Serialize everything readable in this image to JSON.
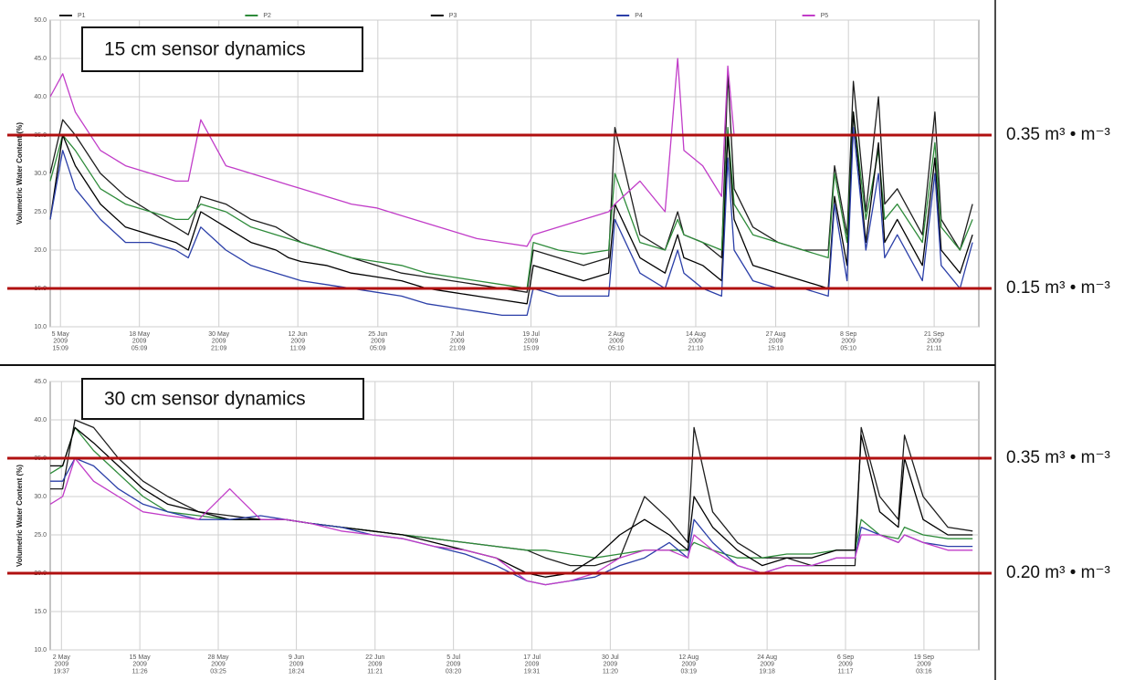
{
  "chart_data": [
    {
      "type": "line",
      "title": "15 cm sensor dynamics",
      "y_label": "Volumetric Water Content (%)",
      "legend": "top",
      "grid": true,
      "xlim": [
        "2009-05-04",
        "2009-09-29"
      ],
      "xticks": [
        {
          "value": "2009-05-05T15:09",
          "label": "5 May\n2009\n15:09"
        },
        {
          "value": "2009-05-18T05:09",
          "label": "18 May\n2009\n05:09"
        },
        {
          "value": "2009-05-30T21:09",
          "label": "30 May\n2009\n21:09"
        },
        {
          "value": "2009-06-12T11:09",
          "label": "12 Jun\n2009\n11:09"
        },
        {
          "value": "2009-06-25T05:09",
          "label": "25 Jun\n2009\n05:09"
        },
        {
          "value": "2009-07-07T21:09",
          "label": "7 Jul\n2009\n21:09"
        },
        {
          "value": "2009-07-19T15:09",
          "label": "19 Jul\n2009\n15:09"
        },
        {
          "value": "2009-08-02T05:10",
          "label": "2 Aug\n2009\n05:10"
        },
        {
          "value": "2009-08-14T21:10",
          "label": "14 Aug\n2009\n21:10"
        },
        {
          "value": "2009-08-27T15:10",
          "label": "27 Aug\n2009\n15:10"
        },
        {
          "value": "2009-09-08T05:10",
          "label": "8 Sep\n2009\n05:10"
        },
        {
          "value": "2009-09-21T21:11",
          "label": "21 Sep\n2009\n21:11"
        }
      ],
      "ylim": [
        10,
        50
      ],
      "yticks": [
        {
          "value": 10,
          "label": "10.0"
        },
        {
          "value": 15,
          "label": "15.0"
        },
        {
          "value": 20,
          "label": "20.0"
        },
        {
          "value": 25,
          "label": "25.0"
        },
        {
          "value": 30,
          "label": "30.0"
        },
        {
          "value": 35,
          "label": "35.0"
        },
        {
          "value": 40,
          "label": "40.0"
        },
        {
          "value": 45,
          "label": "45.0"
        },
        {
          "value": 50,
          "label": "50.0"
        }
      ],
      "thresholds": [
        {
          "value": 35,
          "label": "0.35 m³ • m⁻³"
        },
        {
          "value": 15,
          "label": "0.15 m³ • m⁻³"
        }
      ],
      "threshold_color": "#b01010",
      "x": [
        "2009-05-04",
        "2009-05-06",
        "2009-05-08",
        "2009-05-12",
        "2009-05-16",
        "2009-05-20",
        "2009-05-24",
        "2009-05-26",
        "2009-05-28",
        "2009-06-01",
        "2009-06-05",
        "2009-06-09",
        "2009-06-11",
        "2009-06-13",
        "2009-06-17",
        "2009-06-21",
        "2009-06-25",
        "2009-06-29",
        "2009-07-03",
        "2009-07-07",
        "2009-07-11",
        "2009-07-15",
        "2009-07-19",
        "2009-07-20",
        "2009-07-24",
        "2009-07-28",
        "2009-08-01",
        "2009-08-02",
        "2009-08-06",
        "2009-08-10",
        "2009-08-12",
        "2009-08-13",
        "2009-08-16",
        "2009-08-19",
        "2009-08-20",
        "2009-08-21",
        "2009-08-24",
        "2009-08-28",
        "2009-09-01",
        "2009-09-05",
        "2009-09-06",
        "2009-09-08",
        "2009-09-09",
        "2009-09-11",
        "2009-09-13",
        "2009-09-14",
        "2009-09-16",
        "2009-09-20",
        "2009-09-22",
        "2009-09-23",
        "2009-09-26",
        "2009-09-28"
      ],
      "series": [
        {
          "name": "P1",
          "color": "#1e1e1e",
          "values": [
            30,
            37,
            35,
            30,
            27,
            25,
            23,
            22,
            27,
            26,
            24,
            23,
            22,
            21,
            20,
            19,
            18,
            17,
            16.5,
            16,
            15.5,
            15,
            14.5,
            20,
            19,
            18,
            19,
            36,
            22,
            20,
            25,
            22,
            21,
            19,
            43,
            28,
            23,
            21,
            20,
            20,
            31,
            22,
            42,
            25,
            40,
            26,
            28,
            22,
            38,
            24,
            20,
            26
          ]
        },
        {
          "name": "P2",
          "color": "#2e8b3a",
          "values": [
            29,
            35,
            33,
            28,
            26,
            25,
            24,
            24,
            26,
            25,
            23,
            22,
            21.5,
            21,
            20,
            19,
            18.5,
            18,
            17,
            16.5,
            16,
            15.5,
            15,
            21,
            20,
            19.5,
            20,
            30,
            21,
            20,
            24,
            22,
            21,
            20,
            36,
            26,
            22,
            21,
            20,
            19,
            30,
            21,
            38,
            24,
            33,
            24,
            26,
            21,
            34,
            23,
            20,
            24
          ]
        },
        {
          "name": "P3",
          "color": "#000000",
          "values": [
            24,
            35,
            31,
            26,
            23,
            22,
            21,
            20,
            25,
            23,
            21,
            20,
            19,
            18.5,
            18,
            17,
            16.5,
            16,
            15,
            14.5,
            14,
            13.5,
            13,
            18,
            17,
            16,
            17,
            26,
            19,
            17,
            22,
            19,
            18,
            16,
            35,
            24,
            18,
            17,
            16,
            15,
            27,
            18,
            38,
            21,
            34,
            21,
            24,
            18,
            32,
            20,
            17,
            22
          ]
        },
        {
          "name": "P4",
          "color": "#2b3fa8",
          "values": [
            24,
            33,
            28,
            24,
            21,
            21,
            20,
            19,
            23,
            20,
            18,
            17,
            16.5,
            16,
            15.5,
            15,
            14.5,
            14,
            13,
            12.5,
            12,
            11.5,
            11.5,
            15,
            14,
            14,
            14,
            24,
            17,
            15,
            20,
            17,
            15,
            14,
            32,
            20,
            16,
            15,
            15,
            14,
            26,
            16,
            36,
            20,
            30,
            19,
            22,
            16,
            30,
            18,
            15,
            21
          ]
        },
        {
          "name": "P5",
          "color": "#c13cc8",
          "values": [
            40,
            43,
            38,
            33,
            31,
            30,
            29,
            29,
            37,
            31,
            30,
            29,
            28.5,
            28,
            27,
            26,
            25.5,
            24.5,
            23.5,
            22.5,
            21.5,
            21,
            20.5,
            22,
            23,
            24,
            25,
            26,
            29,
            25,
            45,
            33,
            31,
            27,
            44,
            35,
            null,
            null,
            null,
            null,
            null,
            null,
            null,
            null,
            null,
            null,
            null,
            null,
            null,
            null,
            null,
            null
          ]
        }
      ]
    },
    {
      "type": "line",
      "title": "30 cm sensor dynamics",
      "y_label": "Volumetric Water Content (%)",
      "grid": true,
      "xlim": [
        "2009-05-01",
        "2009-09-28"
      ],
      "xticks": [
        {
          "value": "2009-05-02T19:37",
          "label": "2 May\n2009\n19:37"
        },
        {
          "value": "2009-05-15T11:26",
          "label": "15 May\n2009\n11:26"
        },
        {
          "value": "2009-05-28T03:25",
          "label": "28 May\n2009\n03:25"
        },
        {
          "value": "2009-06-09T18:24",
          "label": "9 Jun\n2009\n18:24"
        },
        {
          "value": "2009-06-22T11:21",
          "label": "22 Jun\n2009\n11:21"
        },
        {
          "value": "2009-07-05T03:20",
          "label": "5 Jul\n2009\n03:20"
        },
        {
          "value": "2009-07-17T19:31",
          "label": "17 Jul\n2009\n19:31"
        },
        {
          "value": "2009-07-30T11:20",
          "label": "30 Jul\n2009\n11:20"
        },
        {
          "value": "2009-08-12T03:19",
          "label": "12 Aug\n2009\n03:19"
        },
        {
          "value": "2009-08-24T19:18",
          "label": "24 Aug\n2009\n19:18"
        },
        {
          "value": "2009-09-06T11:17",
          "label": "6 Sep\n2009\n11:17"
        },
        {
          "value": "2009-09-19T03:16",
          "label": "19 Sep\n2009\n03:16"
        }
      ],
      "ylim": [
        10,
        45
      ],
      "yticks": [
        {
          "value": 10,
          "label": "10.0"
        },
        {
          "value": 15,
          "label": "15.0"
        },
        {
          "value": 20,
          "label": "20.0"
        },
        {
          "value": 25,
          "label": "25.0"
        },
        {
          "value": 30,
          "label": "30.0"
        },
        {
          "value": 35,
          "label": "35.0"
        },
        {
          "value": 40,
          "label": "40.0"
        },
        {
          "value": 45,
          "label": "45.0"
        }
      ],
      "thresholds": [
        {
          "value": 35,
          "label": "0.35 m³ • m⁻³"
        },
        {
          "value": 20,
          "label": "0.20 m³ • m⁻³"
        }
      ],
      "threshold_color": "#b01010",
      "x": [
        "2009-05-01",
        "2009-05-03",
        "2009-05-05",
        "2009-05-08",
        "2009-05-12",
        "2009-05-16",
        "2009-05-20",
        "2009-05-25",
        "2009-05-30",
        "2009-06-04",
        "2009-06-08",
        "2009-06-12",
        "2009-06-17",
        "2009-06-22",
        "2009-06-27",
        "2009-07-02",
        "2009-07-07",
        "2009-07-12",
        "2009-07-17",
        "2009-07-20",
        "2009-07-24",
        "2009-07-28",
        "2009-08-01",
        "2009-08-05",
        "2009-08-09",
        "2009-08-12",
        "2009-08-13",
        "2009-08-16",
        "2009-08-20",
        "2009-08-24",
        "2009-08-28",
        "2009-09-01",
        "2009-09-05",
        "2009-09-08",
        "2009-09-09",
        "2009-09-12",
        "2009-09-15",
        "2009-09-16",
        "2009-09-19",
        "2009-09-23",
        "2009-09-27"
      ],
      "series": [
        {
          "color": "#1e1e1e",
          "values": [
            31,
            31,
            40,
            39,
            35,
            32,
            30,
            28,
            27.5,
            27,
            27,
            26.5,
            26,
            25.5,
            25,
            24.5,
            24,
            23.5,
            23,
            22,
            21,
            21,
            22,
            30,
            27,
            24,
            39,
            28,
            24,
            22,
            22,
            21,
            21,
            21,
            39,
            30,
            27,
            38,
            30,
            26,
            25.5
          ]
        },
        {
          "color": "#2e8b3a",
          "values": [
            33,
            34,
            39,
            36,
            33,
            30,
            28,
            27.5,
            27,
            27,
            27,
            26.5,
            26,
            25.5,
            25,
            24.5,
            24,
            23.5,
            23,
            23,
            22.5,
            22,
            22.5,
            23,
            23,
            23,
            24,
            23,
            22,
            22,
            22.5,
            22.5,
            23,
            23,
            27,
            25,
            24.5,
            26,
            25,
            24.5,
            24.5
          ]
        },
        {
          "color": "#000000",
          "values": [
            34,
            34,
            39,
            37,
            34,
            31,
            29,
            28,
            27,
            27,
            27,
            26.5,
            26,
            25.5,
            25,
            24,
            23,
            22,
            20,
            19.5,
            20,
            22,
            25,
            27,
            25,
            23,
            30,
            26,
            23,
            21,
            22,
            22,
            23,
            23,
            38,
            28,
            26,
            35,
            27,
            25,
            25
          ]
        },
        {
          "color": "#2b3fa8",
          "values": [
            32,
            32,
            35,
            34,
            31,
            29,
            28,
            27,
            27,
            27.5,
            27,
            26.5,
            26,
            25,
            24.5,
            23.5,
            22.5,
            21,
            19,
            18.5,
            19,
            19.5,
            21,
            22,
            24,
            22,
            27,
            24,
            21,
            20,
            21,
            21,
            22,
            22,
            26,
            25,
            24,
            25,
            24,
            23.5,
            23.5
          ]
        },
        {
          "color": "#c13cc8",
          "values": [
            29,
            30,
            35,
            32,
            30,
            28,
            27.5,
            27,
            31,
            27,
            27,
            26.5,
            25.5,
            25,
            24.5,
            23.5,
            23,
            22,
            19,
            18.5,
            19,
            20,
            22,
            23,
            23,
            22,
            25,
            23,
            21,
            20,
            21,
            21,
            22,
            22,
            25,
            25,
            24,
            25,
            24,
            23,
            23
          ]
        }
      ]
    }
  ]
}
